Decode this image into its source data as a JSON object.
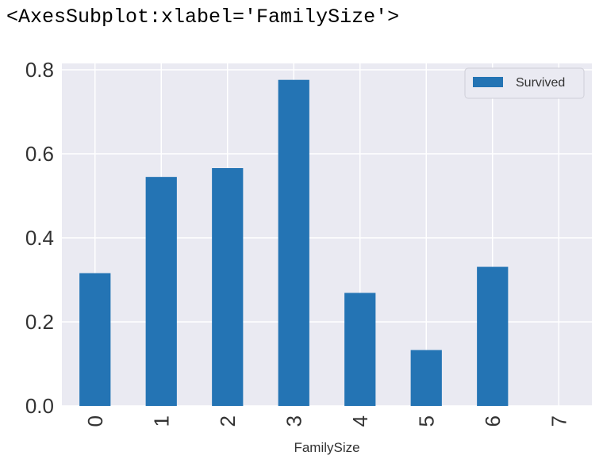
{
  "output": {
    "repr": "<AxesSubplot:xlabel='FamilySize'>"
  },
  "colors": {
    "bar": "#2474b4",
    "plot_background": "#eaeaf2",
    "grid": "#ffffff"
  },
  "chart_data": {
    "type": "bar",
    "categories": [
      "0",
      "1",
      "2",
      "3",
      "4",
      "5",
      "6",
      "7"
    ],
    "series": [
      {
        "name": "Survived",
        "values": [
          0.316,
          0.545,
          0.566,
          0.776,
          0.269,
          0.133,
          0.331,
          0.0
        ]
      }
    ],
    "title": "",
    "xlabel": "FamilySize",
    "ylabel": "",
    "ylim": [
      0.0,
      0.82
    ],
    "yticks": [
      0.0,
      0.2,
      0.4,
      0.6,
      0.8
    ],
    "ytick_labels": [
      "0.0",
      "0.2",
      "0.4",
      "0.6",
      "0.8"
    ],
    "grid": true,
    "legend_position": "top-right",
    "xtick_rotation": "vertical"
  }
}
